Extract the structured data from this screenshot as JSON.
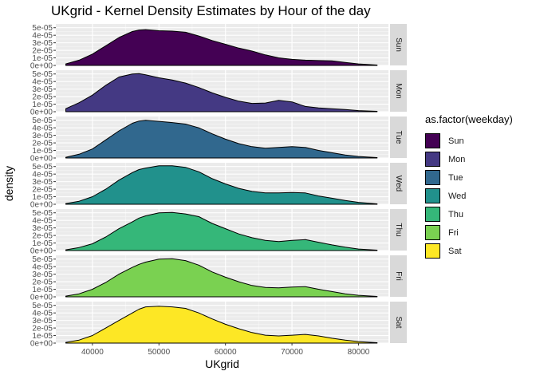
{
  "chart_data": {
    "type": "area",
    "title": "UKgrid - Kernel Density Estimates by Hour of the day",
    "xlabel": "UKgrid",
    "ylabel": "density",
    "xlim": [
      34500,
      84500
    ],
    "ylim": [
      0,
      5.5e-05
    ],
    "x_ticks": [
      "40000",
      "50000",
      "60000",
      "70000",
      "80000"
    ],
    "x_tick_values": [
      40000,
      50000,
      60000,
      70000,
      80000
    ],
    "y_ticks": [
      "0e+00",
      "1e-05",
      "2e-05",
      "3e-05",
      "4e-05",
      "5e-05"
    ],
    "y_tick_values": [
      0,
      1e-05,
      2e-05,
      3e-05,
      4e-05,
      5e-05
    ],
    "legend_title": "as.factor(weekday)",
    "legend_position": "right",
    "grid": true,
    "x": [
      36000,
      38000,
      40000,
      42000,
      44000,
      46000,
      47000,
      48000,
      50000,
      52000,
      54000,
      56000,
      58000,
      60000,
      62000,
      64000,
      66000,
      68000,
      70000,
      72000,
      74000,
      76000,
      78000,
      80000,
      82800
    ],
    "series": [
      {
        "name": "Sun",
        "color": "#440154",
        "values": [
          2e-06,
          7e-06,
          1.5e-05,
          2.6e-05,
          3.7e-05,
          4.5e-05,
          4.7e-05,
          4.75e-05,
          4.6e-05,
          4.55e-05,
          4.4e-05,
          3.9e-05,
          3.3e-05,
          2.8e-05,
          2.3e-05,
          1.9e-05,
          1.4e-05,
          1e-05,
          8e-06,
          7e-06,
          6.5e-06,
          6e-06,
          4e-06,
          2e-06,
          5e-07
        ]
      },
      {
        "name": "Mon",
        "color": "#443983",
        "values": [
          4e-06,
          1.2e-05,
          2.2e-05,
          3.5e-05,
          4.6e-05,
          5e-05,
          5.05e-05,
          4.9e-05,
          4.5e-05,
          4.2e-05,
          3.8e-05,
          3.2e-05,
          2.5e-05,
          1.9e-05,
          1.4e-05,
          1.1e-05,
          1.15e-05,
          1.5e-05,
          1.3e-05,
          7e-06,
          5e-06,
          4e-06,
          3e-06,
          1.5e-06,
          5e-07
        ]
      },
      {
        "name": "Tue",
        "color": "#31688e",
        "values": [
          1e-06,
          5e-06,
          1.2e-05,
          2.4e-05,
          3.6e-05,
          4.6e-05,
          4.9e-05,
          5e-05,
          4.85e-05,
          4.7e-05,
          4.5e-05,
          4e-05,
          3.2e-05,
          2.5e-05,
          1.9e-05,
          1.5e-05,
          1.3e-05,
          1.4e-05,
          1.5e-05,
          1.4e-05,
          1e-05,
          7e-06,
          4e-06,
          2e-06,
          5e-07
        ]
      },
      {
        "name": "Wed",
        "color": "#21918c",
        "values": [
          1e-06,
          4e-06,
          1e-05,
          2e-05,
          3.2e-05,
          4.2e-05,
          4.6e-05,
          4.8e-05,
          5.1e-05,
          5.1e-05,
          4.9e-05,
          4.3e-05,
          3.4e-05,
          2.7e-05,
          2.1e-05,
          1.7e-05,
          1.5e-05,
          1.5e-05,
          1.55e-05,
          1.5e-05,
          1.1e-05,
          8e-06,
          5e-06,
          2.5e-06,
          5e-07
        ]
      },
      {
        "name": "Thu",
        "color": "#35b779",
        "values": [
          1e-06,
          4e-06,
          9e-06,
          1.8e-05,
          2.9e-05,
          3.8e-05,
          4.3e-05,
          4.6e-05,
          5e-05,
          5.05e-05,
          4.85e-05,
          4.5e-05,
          3.6e-05,
          2.9e-05,
          2.2e-05,
          1.7e-05,
          1.35e-05,
          1.2e-05,
          1.35e-05,
          1.45e-05,
          1.1e-05,
          7.5e-06,
          4.5e-06,
          2e-06,
          5e-07
        ]
      },
      {
        "name": "Fri",
        "color": "#7ad151",
        "values": [
          1e-06,
          4e-06,
          1e-05,
          1.9e-05,
          3e-05,
          3.9e-05,
          4.3e-05,
          4.6e-05,
          5e-05,
          5.05e-05,
          4.8e-05,
          4.2e-05,
          3.3e-05,
          2.6e-05,
          2e-05,
          1.5e-05,
          1.25e-05,
          1.2e-05,
          1.3e-05,
          1.35e-05,
          1e-05,
          7e-06,
          4e-06,
          2e-06,
          5e-07
        ]
      },
      {
        "name": "Sat",
        "color": "#fde725",
        "values": [
          1e-06,
          4e-06,
          1e-05,
          2e-05,
          3e-05,
          4e-05,
          4.5e-05,
          4.8e-05,
          4.9e-05,
          4.8e-05,
          4.6e-05,
          4e-05,
          3.2e-05,
          2.5e-05,
          1.9e-05,
          1.4e-05,
          1.05e-05,
          9.5e-06,
          1.05e-05,
          1.15e-05,
          9.5e-06,
          6.5e-06,
          4e-06,
          2e-06,
          5e-07
        ]
      }
    ]
  }
}
